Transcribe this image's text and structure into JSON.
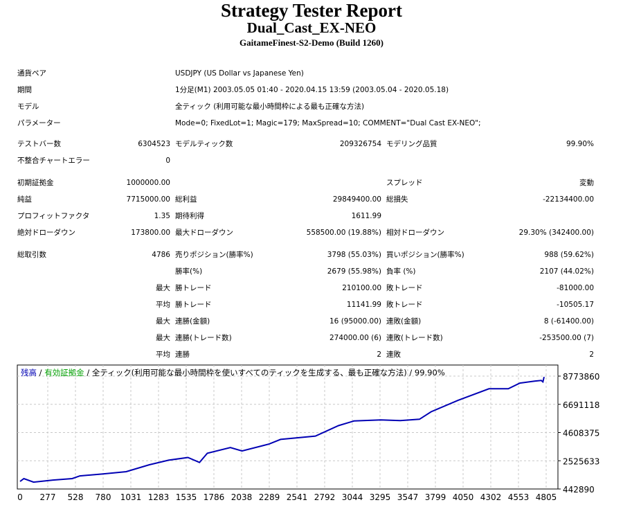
{
  "header": {
    "title": "Strategy Tester Report",
    "ea_name": "Dual_Cast_EX-NEO",
    "server": "GaitameFinest-S2-Demo (Build 1260)"
  },
  "info": [
    {
      "label": "通貨ペア",
      "value": "USDJPY (US Dollar vs Japanese Yen)"
    },
    {
      "label": "期間",
      "value": "1分足(M1) 2003.05.05 01:40 - 2020.04.15 13:59 (2003.05.04 - 2020.05.18)"
    },
    {
      "label": "モデル",
      "value": "全ティック (利用可能な最小時間枠による最も正確な方法)"
    },
    {
      "label": "パラメーター",
      "value": "Mode=0; FixedLot=1; Magic=179; MaxSpread=10; COMMENT=\"Dual Cast EX-NEO\";"
    }
  ],
  "stats": [
    [
      "テストバー数",
      "6304523",
      "モデルティック数",
      "209326754",
      "モデリング品質",
      "99.90%"
    ],
    [
      "不整合チャートエラー",
      "0",
      "",
      "",
      "",
      ""
    ],
    [
      "初期証拠金",
      "1000000.00",
      "",
      "",
      "スプレッド",
      "変動"
    ],
    [
      "純益",
      "7715000.00",
      "総利益",
      "29849400.00",
      "総損失",
      "-22134400.00"
    ],
    [
      "プロフィットファクタ",
      "1.35",
      "期待利得",
      "1611.99",
      "",
      ""
    ],
    [
      "絶対ドローダウン",
      "173800.00",
      "最大ドローダウン",
      "558500.00 (19.88%)",
      "相対ドローダウン",
      "29.30% (342400.00)"
    ],
    [
      "総取引数",
      "4786",
      "売りポジション(勝率%)",
      "3798 (55.03%)",
      "買いポジション(勝率%)",
      "988 (59.62%)"
    ],
    [
      "",
      "",
      "勝率(%)",
      "2679 (55.98%)",
      "負率 (%)",
      "2107 (44.02%)"
    ],
    [
      "",
      "最大",
      "勝トレード",
      "210100.00",
      "敗トレード",
      "-81000.00"
    ],
    [
      "",
      "平均",
      "勝トレード",
      "11141.99",
      "敗トレード",
      "-10505.17"
    ],
    [
      "",
      "最大",
      "連勝(金額)",
      "16 (95000.00)",
      "連敗(金額)",
      "8 (-61400.00)"
    ],
    [
      "",
      "最大",
      "連勝(トレード数)",
      "274000.00 (6)",
      "連敗(トレード数)",
      "-253500.00 (7)"
    ],
    [
      "",
      "平均",
      "連勝",
      "2",
      "連敗",
      "2"
    ]
  ],
  "chart_data": {
    "type": "line",
    "legend": {
      "balance": "残高",
      "sep1": " / ",
      "equity": "有効証拠金",
      "sep2": " / ",
      "model": "全ティック(利用可能な最小時間枠を使いすべてのティックを生成する、最も正確な方法)",
      "sep3": " / ",
      "quality": "99.90%"
    },
    "colors": {
      "balance": "#0000b4",
      "equity": "#00a000",
      "grid": "#c8c8c8"
    },
    "x_ticks": [
      "0",
      "277",
      "528",
      "780",
      "1031",
      "1283",
      "1535",
      "1786",
      "2038",
      "2289",
      "2541",
      "2792",
      "3044",
      "3295",
      "3547",
      "3799",
      "4050",
      "4302",
      "4553",
      "4805"
    ],
    "y_ticks": [
      "8773860",
      "6691118",
      "4608375",
      "2525633",
      "442890"
    ],
    "xlim": [
      0,
      4805
    ],
    "ylim": [
      442890,
      8773860
    ],
    "series": [
      {
        "name": "残高",
        "x": [
          0,
          35,
          123,
          300,
          476,
          546,
          758,
          969,
          1181,
          1357,
          1533,
          1639,
          1710,
          1921,
          2027,
          2274,
          2379,
          2697,
          2908,
          3049,
          3296,
          3472,
          3648,
          3754,
          4001,
          4283,
          4459,
          4565,
          4700,
          4760,
          4775,
          4786
        ],
        "y": [
          1000000,
          1210000,
          950000,
          1100000,
          1210000,
          1410000,
          1550000,
          1720000,
          2230000,
          2570000,
          2770000,
          2400000,
          3080000,
          3500000,
          3250000,
          3760000,
          4100000,
          4350000,
          5120000,
          5460000,
          5540000,
          5490000,
          5590000,
          6140000,
          6990000,
          7840000,
          7840000,
          8260000,
          8400000,
          8450000,
          8350000,
          8715000
        ]
      }
    ]
  }
}
